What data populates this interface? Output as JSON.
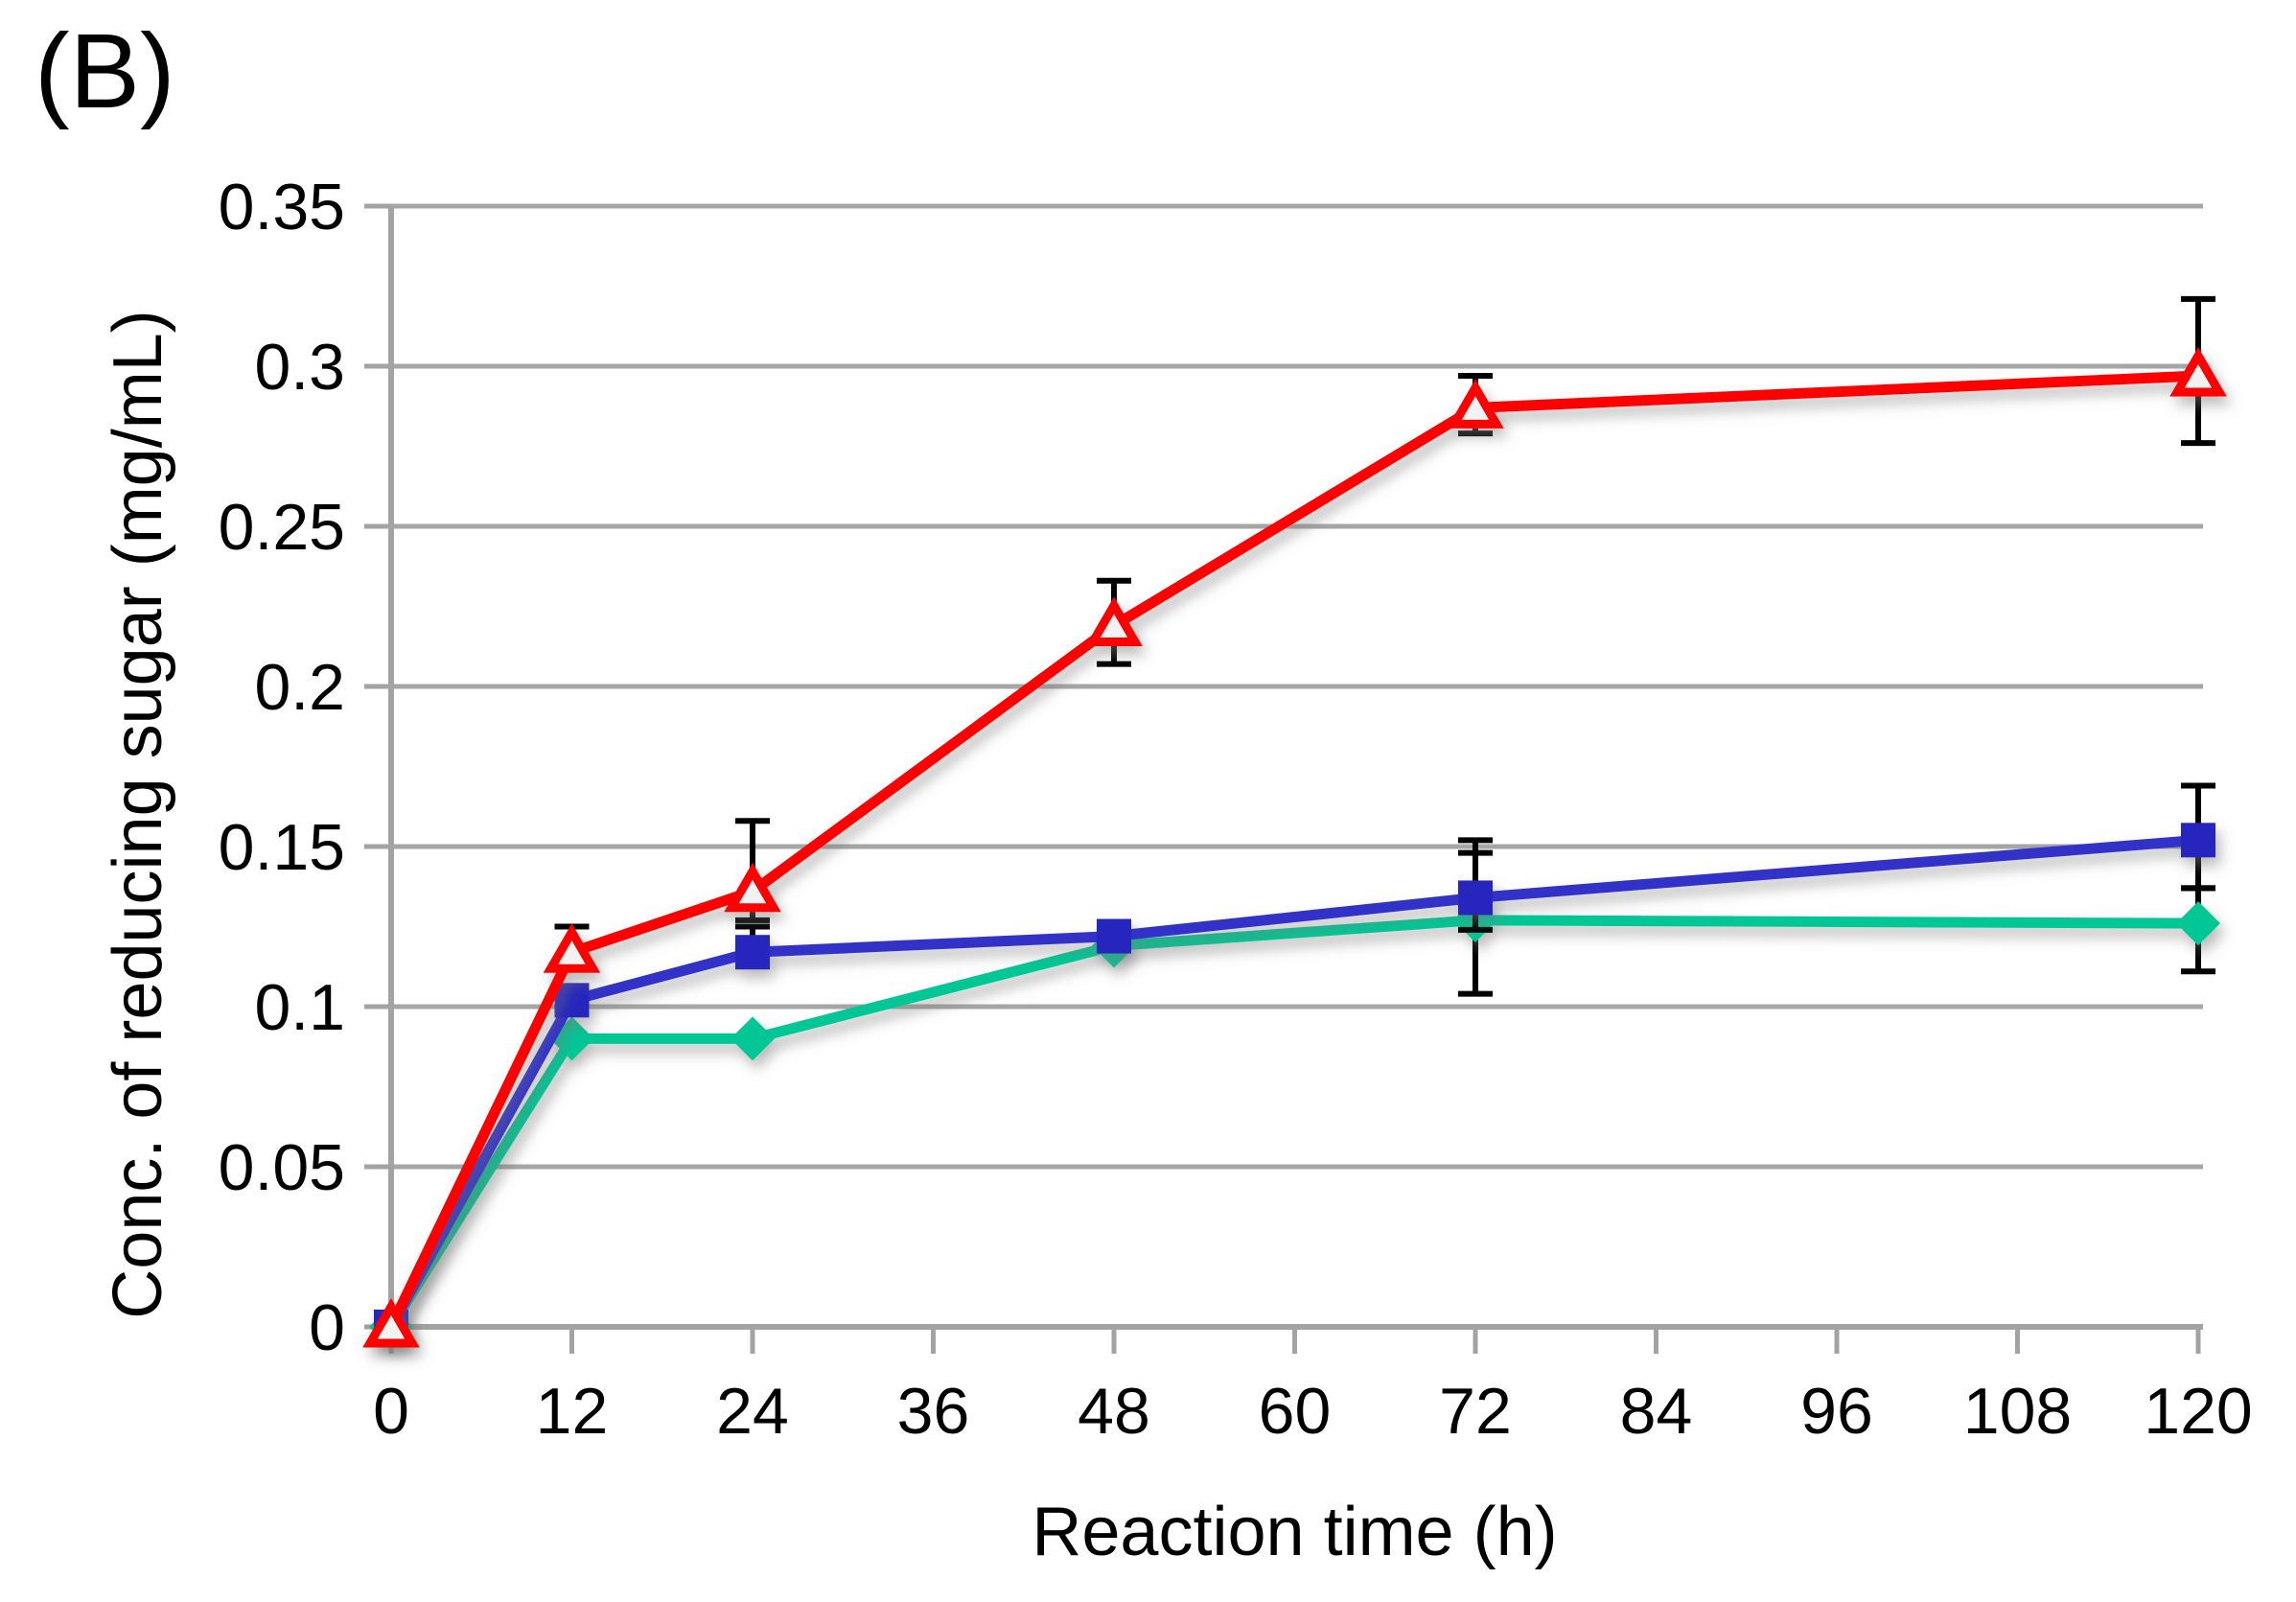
{
  "chart_data": {
    "type": "line",
    "title": "(B)",
    "xlabel": "Reaction time (h)",
    "ylabel": "Conc. of reducing sugar (mg/mL)",
    "xlim": [
      0,
      120
    ],
    "ylim": [
      0,
      0.35
    ],
    "xticks": [
      0,
      12,
      24,
      36,
      48,
      60,
      72,
      84,
      96,
      108,
      120
    ],
    "yticks": [
      0,
      0.05,
      0.1,
      0.15,
      0.2,
      0.25,
      0.3,
      0.35
    ],
    "ytick_labels": [
      "0",
      "0.05",
      "0.1",
      "0.15",
      "0.2",
      "0.25",
      "0.3",
      "0.35"
    ],
    "grid": "horizontal-only",
    "legend": "none",
    "background_color": "#FFFFFF",
    "axis_color": "#A3A3A3",
    "gridline_color": "#A6A6A6",
    "errorbar_color": "#000000",
    "x": [
      0,
      12,
      24,
      48,
      72,
      120
    ],
    "series": [
      {
        "name": "green-diamond-series",
        "marker": "diamond",
        "color": "#05C795",
        "marker_fill": "#05C795",
        "values": [
          0,
          0.09,
          0.09,
          0.119,
          0.127,
          0.126
        ],
        "err_plus": [
          0,
          0,
          0,
          0,
          0.021,
          0.011
        ],
        "err_minus": [
          0,
          0,
          0,
          0,
          0.023,
          0.015
        ]
      },
      {
        "name": "blue-square-series",
        "marker": "square",
        "color": "#3030C8",
        "marker_fill": "#2626BE",
        "values": [
          0,
          0.102,
          0.117,
          0.122,
          0.134,
          0.152
        ],
        "err_plus": [
          0,
          0,
          0.008,
          0,
          0.018,
          0.017
        ],
        "err_minus": [
          0,
          0,
          0.004,
          0,
          0.01,
          0.015
        ]
      },
      {
        "name": "red-triangle-series",
        "marker": "triangle-open",
        "color": "#FE0000",
        "marker_fill": "#F2F2F2",
        "values": [
          0,
          0.117,
          0.136,
          0.219,
          0.287,
          0.297
        ],
        "err_plus": [
          0,
          0.008,
          0.022,
          0.014,
          0.01,
          0.024
        ],
        "err_minus": [
          0,
          0.004,
          0.009,
          0.012,
          0.008,
          0.021
        ]
      }
    ]
  }
}
